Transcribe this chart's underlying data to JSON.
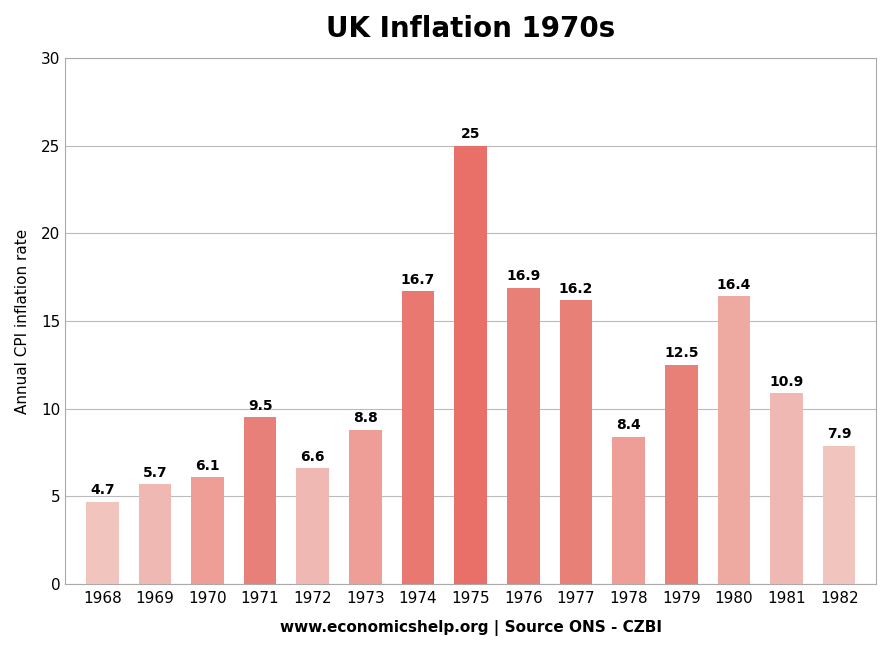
{
  "title": "UK Inflation 1970s",
  "xlabel": "www.economicshelp.org | Source ONS - CZBI",
  "ylabel": "Annual CPI inflation rate",
  "years": [
    1968,
    1969,
    1970,
    1971,
    1972,
    1973,
    1974,
    1975,
    1976,
    1977,
    1978,
    1979,
    1980,
    1981,
    1982
  ],
  "values": [
    4.7,
    5.7,
    6.1,
    9.5,
    6.6,
    8.8,
    16.7,
    25.0,
    16.9,
    16.2,
    8.4,
    12.5,
    16.4,
    10.9,
    7.9
  ],
  "bar_colors": [
    "#f2c4be",
    "#f0b8b2",
    "#ee9d97",
    "#e8807a",
    "#f0b8b2",
    "#ee9d97",
    "#e87870",
    "#e87068",
    "#e88078",
    "#e88078",
    "#ee9d97",
    "#e88078",
    "#eeaaa0",
    "#f0b8b2",
    "#f2c4be"
  ],
  "ylim": [
    0,
    30
  ],
  "yticks": [
    0,
    5,
    10,
    15,
    20,
    25,
    30
  ],
  "title_fontsize": 20,
  "label_fontsize": 11,
  "tick_fontsize": 11,
  "value_fontsize": 10,
  "background_color": "#ffffff",
  "grid_color": "#bbbbbb",
  "border_color": "#aaaaaa"
}
